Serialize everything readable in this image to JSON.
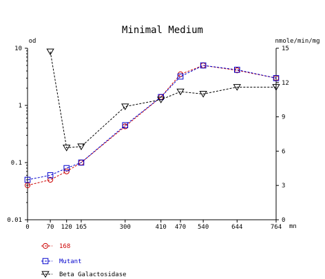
{
  "chart_data": {
    "type": "line",
    "title": "Minimal Medium",
    "xunit": "mn",
    "yleft_unit": "od",
    "yright_unit": "nmole/min/mg",
    "x": [
      0,
      70,
      120,
      165,
      300,
      410,
      470,
      540,
      644,
      764
    ],
    "x_ticks": [
      "0",
      "70",
      "120",
      "165",
      "300",
      "410",
      "470",
      "540",
      "644",
      "764"
    ],
    "yleft_scale": "log",
    "yleft_range": [
      0.01,
      10
    ],
    "yleft_ticks": [
      "10",
      "1",
      "0.1",
      "0.01"
    ],
    "yright_range": [
      0,
      15
    ],
    "yright_ticks": [
      "15",
      "12",
      "9",
      "6",
      "3",
      "0"
    ],
    "grid": false,
    "legend_placement": "bottom-left",
    "series": [
      {
        "name": "168",
        "axis": "left",
        "color": "#cc0000",
        "marker": "circle",
        "x": [
          0,
          70,
          120,
          165,
          300,
          410,
          470,
          540,
          644,
          764
        ],
        "values": [
          0.04,
          0.05,
          0.07,
          0.1,
          0.43,
          1.4,
          3.5,
          5.0,
          4.1,
          3.0
        ]
      },
      {
        "name": "Mutant",
        "axis": "left",
        "color": "#0000cc",
        "marker": "square",
        "x": [
          0,
          70,
          120,
          165,
          300,
          410,
          470,
          540,
          644,
          764
        ],
        "values": [
          0.05,
          0.06,
          0.08,
          0.1,
          0.45,
          1.4,
          3.2,
          5.0,
          4.2,
          3.0
        ]
      },
      {
        "name": "Beta Galactosidase",
        "axis": "right",
        "color": "#000000",
        "marker": "triangle-down",
        "x": [
          70,
          120,
          165,
          300,
          410,
          470,
          540,
          644,
          764
        ],
        "values": [
          14.7,
          6.3,
          6.4,
          9.9,
          10.5,
          11.2,
          11.0,
          11.6,
          11.6
        ]
      }
    ]
  }
}
